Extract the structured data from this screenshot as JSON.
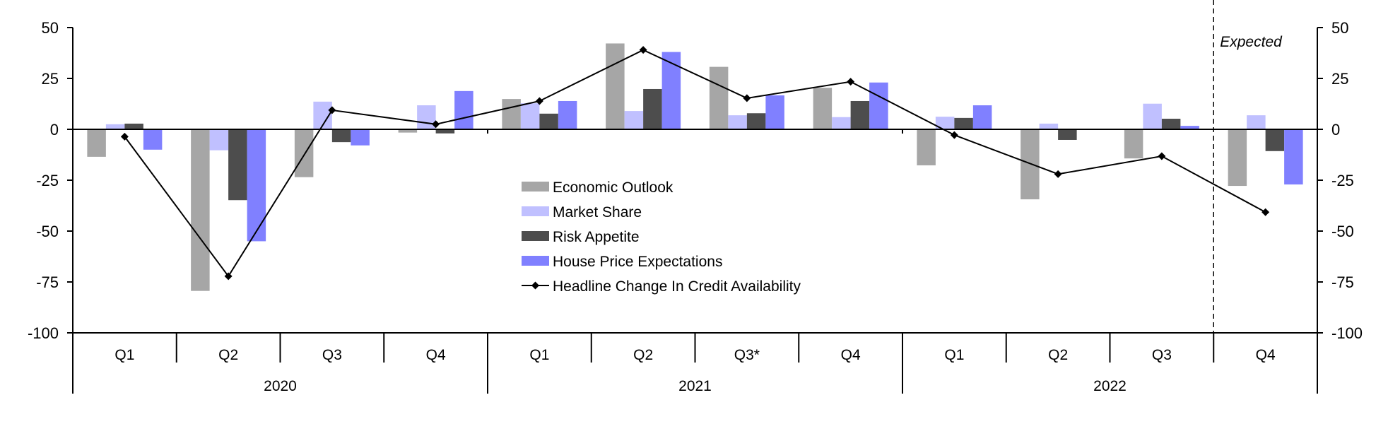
{
  "chart_data": {
    "type": "bar",
    "title": "",
    "xlabel": "",
    "ylabel": "",
    "ylim": [
      -100,
      50
    ],
    "yticks": [
      "50",
      "25",
      "0",
      "-25",
      "-50",
      "-75",
      "-100"
    ],
    "ytick_values": [
      50,
      25,
      0,
      -25,
      -50,
      -75,
      -100
    ],
    "categories": [
      "Q1",
      "Q2",
      "Q3",
      "Q4",
      "Q1",
      "Q2",
      "Q3*",
      "Q4",
      "Q1",
      "Q2",
      "Q3",
      "Q4"
    ],
    "years": [
      {
        "label": "2020",
        "span": 4
      },
      {
        "label": "2021",
        "span": 4
      },
      {
        "label": "2022",
        "span": 4
      }
    ],
    "annotation": "Expected",
    "expected_from_index": 11,
    "legend_position": "center",
    "series": [
      {
        "name": "Economic Outlook",
        "type": "bar",
        "color": "#a6a6a6",
        "values": [
          -13.5,
          -79.4,
          -23.5,
          -1.6,
          14.9,
          42.2,
          30.7,
          20.4,
          -17.7,
          -34.4,
          -14.3,
          -27.8
        ]
      },
      {
        "name": "Market Share",
        "type": "bar",
        "color": "#c0c0ff",
        "values": [
          2.5,
          -10.3,
          13.6,
          11.8,
          12.8,
          9.0,
          6.9,
          6.0,
          6.2,
          2.8,
          12.6,
          6.9
        ]
      },
      {
        "name": "Risk Appetite",
        "type": "bar",
        "color": "#4d4d4d",
        "values": [
          2.8,
          -34.8,
          -6.3,
          -2.0,
          7.7,
          19.8,
          7.9,
          13.9,
          5.6,
          -5.2,
          5.2,
          -10.7
        ]
      },
      {
        "name": "House Price Expectations",
        "type": "bar",
        "color": "#8080ff",
        "values": [
          -10.0,
          -55.0,
          -7.9,
          18.8,
          13.9,
          38.0,
          16.7,
          23.0,
          11.8,
          0.0,
          1.7,
          -27.1
        ]
      },
      {
        "name": "Headline Change In Credit Availability",
        "type": "line",
        "color": "#000000",
        "values": [
          -3.6,
          -72.2,
          9.4,
          2.5,
          13.9,
          39.0,
          15.3,
          23.4,
          -2.8,
          -22.0,
          -13.2,
          -40.7
        ]
      }
    ]
  }
}
